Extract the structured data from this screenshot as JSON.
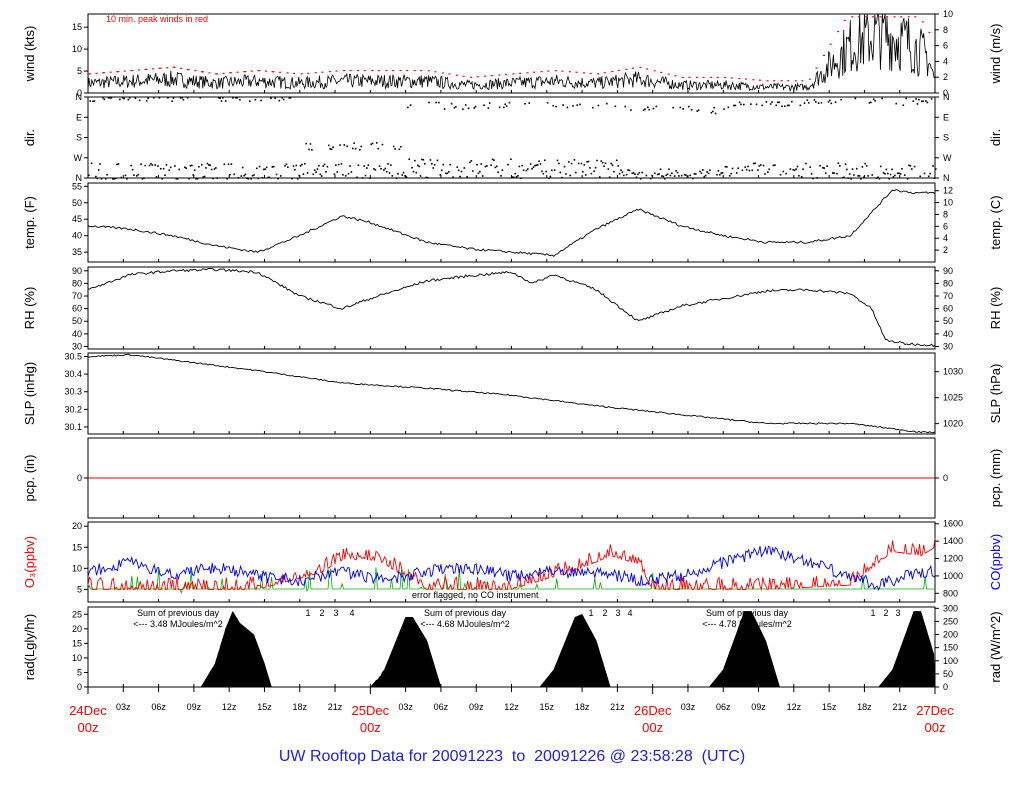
{
  "footer": {
    "prefix": "UW Rooftop Data for",
    "start": "20091223",
    "to": "to",
    "end": "20091226",
    "at": "@ 23:58:28",
    "zone": "(UTC)"
  },
  "chart_data": {
    "type": "line",
    "time_axis": {
      "hour_ticks": [
        "03z",
        "06z",
        "09z",
        "12z",
        "15z",
        "18z",
        "21z",
        "03z",
        "06z",
        "09z",
        "12z",
        "15z",
        "18z",
        "21z",
        "03z",
        "06z",
        "09z",
        "12z",
        "15z",
        "18z",
        "21z"
      ],
      "day_labels": [
        {
          "date": "24Dec",
          "hour": "00z"
        },
        {
          "date": "25Dec",
          "hour": "00z"
        },
        {
          "date": "26Dec",
          "hour": "00z"
        },
        {
          "date": "27Dec",
          "hour": "00z"
        }
      ]
    },
    "panels": [
      {
        "id": "wind",
        "left_label": "wind (kts)",
        "right_label": "wind (m/s)",
        "left_ticks": [
          "0",
          "5",
          "10",
          "15"
        ],
        "right_ticks": [
          "0",
          "2",
          "4",
          "6",
          "8",
          "10"
        ],
        "annotation": "10 min. peak winds in red",
        "series": [
          {
            "name": "wind",
            "points": [
              [
                0,
                2.5
              ],
              [
                6,
                3
              ],
              [
                12,
                3.5
              ],
              [
                18,
                2.5
              ],
              [
                24,
                3
              ],
              [
                30,
                2.5
              ],
              [
                36,
                3
              ],
              [
                42,
                3
              ],
              [
                48,
                3
              ],
              [
                54,
                2
              ],
              [
                60,
                2.5
              ],
              [
                66,
                3
              ],
              [
                72,
                2.5
              ],
              [
                78,
                3.5
              ],
              [
                84,
                2
              ],
              [
                90,
                2
              ],
              [
                96,
                1.5
              ],
              [
                102,
                1.5
              ],
              [
                108,
                12
              ],
              [
                112,
                15
              ],
              [
                116,
                13
              ],
              [
                119,
                9
              ],
              [
                120,
                3
              ]
            ]
          }
        ]
      },
      {
        "id": "dir",
        "left_label": "dir.",
        "right_label": "dir.",
        "left_ticks": [
          "N",
          "E",
          "S",
          "W",
          "N"
        ],
        "right_ticks": [
          "N",
          "E",
          "S",
          "W",
          "N"
        ]
      },
      {
        "id": "temp",
        "left_label": "temp. (F)",
        "right_label": "temp. (C)",
        "left_ticks": [
          "35",
          "40",
          "45",
          "50",
          "55"
        ],
        "right_ticks": [
          "2",
          "4",
          "6",
          "8",
          "10",
          "12"
        ],
        "series": [
          {
            "name": "temp",
            "points": [
              [
                0,
                43
              ],
              [
                6,
                42
              ],
              [
                12,
                40
              ],
              [
                18,
                37
              ],
              [
                24,
                35
              ],
              [
                30,
                40
              ],
              [
                36,
                46
              ],
              [
                40,
                44
              ],
              [
                48,
                38
              ],
              [
                54,
                36
              ],
              [
                60,
                35
              ],
              [
                66,
                34
              ],
              [
                72,
                42
              ],
              [
                78,
                48
              ],
              [
                84,
                43
              ],
              [
                90,
                40
              ],
              [
                96,
                38
              ],
              [
                102,
                38
              ],
              [
                108,
                40
              ],
              [
                111,
                47
              ],
              [
                114,
                54
              ],
              [
                117,
                53
              ],
              [
                120,
                53
              ]
            ]
          }
        ]
      },
      {
        "id": "rh",
        "left_label": "RH (%)",
        "right_label": "RH (%)",
        "left_ticks": [
          "30",
          "40",
          "50",
          "60",
          "70",
          "80",
          "90"
        ],
        "right_ticks": [
          "30",
          "40",
          "50",
          "60",
          "70",
          "80",
          "90"
        ],
        "series": [
          {
            "name": "RH",
            "points": [
              [
                0,
                75
              ],
              [
                6,
                87
              ],
              [
                12,
                90
              ],
              [
                18,
                91
              ],
              [
                24,
                89
              ],
              [
                30,
                70
              ],
              [
                36,
                60
              ],
              [
                40,
                68
              ],
              [
                48,
                82
              ],
              [
                54,
                86
              ],
              [
                60,
                89
              ],
              [
                63,
                80
              ],
              [
                66,
                87
              ],
              [
                72,
                75
              ],
              [
                78,
                50
              ],
              [
                84,
                62
              ],
              [
                90,
                68
              ],
              [
                96,
                74
              ],
              [
                102,
                75
              ],
              [
                108,
                72
              ],
              [
                111,
                60
              ],
              [
                113,
                35
              ],
              [
                116,
                32
              ],
              [
                120,
                31
              ]
            ]
          }
        ]
      },
      {
        "id": "slp",
        "left_label": "SLP (inHg)",
        "right_label": "SLP (hPa)",
        "left_ticks": [
          "30.1",
          "30.2",
          "30.3",
          "30.4",
          "30.5"
        ],
        "right_ticks": [
          "1020",
          "1025",
          "1030"
        ],
        "series": [
          {
            "name": "SLP",
            "points": [
              [
                0,
                30.5
              ],
              [
                6,
                30.51
              ],
              [
                12,
                30.48
              ],
              [
                24,
                30.42
              ],
              [
                36,
                30.35
              ],
              [
                48,
                30.32
              ],
              [
                60,
                30.28
              ],
              [
                72,
                30.22
              ],
              [
                84,
                30.17
              ],
              [
                96,
                30.12
              ],
              [
                108,
                30.12
              ],
              [
                114,
                30.09
              ],
              [
                118,
                30.07
              ],
              [
                120,
                30.07
              ]
            ]
          }
        ]
      },
      {
        "id": "pcp",
        "left_label": "pcp. (in)",
        "right_label": "pcp. (mm)",
        "left_ticks": [
          "0"
        ],
        "right_ticks": [
          "0"
        ],
        "series": [
          {
            "name": "pcp",
            "points": [
              [
                0,
                0
              ],
              [
                120,
                0
              ]
            ]
          }
        ]
      },
      {
        "id": "chem",
        "left_label": "O₃(ppbv)",
        "right_label": "CO(ppbv)",
        "left_ticks": [
          "5",
          "10",
          "15",
          "20"
        ],
        "right_ticks": [
          "800",
          "1000",
          "1200",
          "1400",
          "1600"
        ],
        "annotation": "error flagged, no CO instrument",
        "series": [
          {
            "name": "O3",
            "points": [
              [
                0,
                5
              ],
              [
                12,
                5
              ],
              [
                24,
                5
              ],
              [
                33,
                9
              ],
              [
                36,
                12
              ],
              [
                41,
                12
              ],
              [
                48,
                5
              ],
              [
                60,
                5
              ],
              [
                70,
                10
              ],
              [
                74,
                13
              ],
              [
                78,
                11
              ],
              [
                80,
                5
              ],
              [
                96,
                5
              ],
              [
                108,
                6
              ],
              [
                111,
                10
              ],
              [
                114,
                14
              ],
              [
                118,
                13
              ],
              [
                120,
                15
              ]
            ]
          },
          {
            "name": "CO",
            "points": [
              [
                0,
                1050
              ],
              [
                6,
                1150
              ],
              [
                12,
                1000
              ],
              [
                18,
                1100
              ],
              [
                24,
                1000
              ],
              [
                30,
                950
              ],
              [
                36,
                1050
              ],
              [
                42,
                950
              ],
              [
                48,
                1050
              ],
              [
                54,
                1100
              ],
              [
                60,
                1000
              ],
              [
                66,
                1050
              ],
              [
                72,
                1050
              ],
              [
                78,
                950
              ],
              [
                84,
                1000
              ],
              [
                90,
                1150
              ],
              [
                96,
                1300
              ],
              [
                100,
                1200
              ],
              [
                104,
                1100
              ],
              [
                108,
                1000
              ],
              [
                112,
                900
              ],
              [
                116,
                1000
              ],
              [
                120,
                1050
              ]
            ]
          }
        ]
      },
      {
        "id": "rad",
        "left_label": "rad(Lgly/hr)",
        "right_label": "rad (W/m^2)",
        "left_ticks": [
          "0",
          "5",
          "10",
          "15",
          "20",
          "25"
        ],
        "right_ticks": [
          "0",
          "50",
          "100",
          "150",
          "200",
          "250",
          "300"
        ],
        "annotations": [
          {
            "line1": "Sum of previous day",
            "line2": "<--- 3.48 MJoules/m^2",
            "markers": [
              "1",
              "2",
              "3",
              "4"
            ]
          },
          {
            "line1": "Sum of previous day",
            "line2": "<--- 4.68 MJoules/m^2",
            "markers": [
              "1",
              "2",
              "3",
              "4"
            ]
          },
          {
            "line1": "Sum of previous day",
            "line2": "<--- 4.78 MJoules/m^2",
            "markers": [
              "1",
              "2",
              "3"
            ]
          }
        ],
        "series": [
          {
            "name": "rad",
            "points": [
              [
                0,
                0
              ],
              [
                16,
                0
              ],
              [
                18,
                8
              ],
              [
                19.5,
                20
              ],
              [
                20.5,
                26
              ],
              [
                21.5,
                22
              ],
              [
                22.5,
                20
              ],
              [
                23.5,
                18
              ],
              [
                25,
                8
              ],
              [
                26,
                0
              ],
              [
                40,
                0
              ],
              [
                42,
                6
              ],
              [
                45,
                24
              ],
              [
                46,
                24
              ],
              [
                48,
                16
              ],
              [
                50,
                0
              ],
              [
                64,
                0
              ],
              [
                66,
                6
              ],
              [
                69,
                24
              ],
              [
                70,
                25
              ],
              [
                72,
                16
              ],
              [
                74,
                0
              ],
              [
                88,
                0
              ],
              [
                90,
                6
              ],
              [
                93,
                26
              ],
              [
                94,
                26
              ],
              [
                96,
                16
              ],
              [
                98,
                0
              ],
              [
                112,
                0
              ],
              [
                114,
                6
              ],
              [
                117,
                26
              ],
              [
                118,
                26
              ],
              [
                120,
                10
              ]
            ]
          }
        ]
      }
    ]
  }
}
